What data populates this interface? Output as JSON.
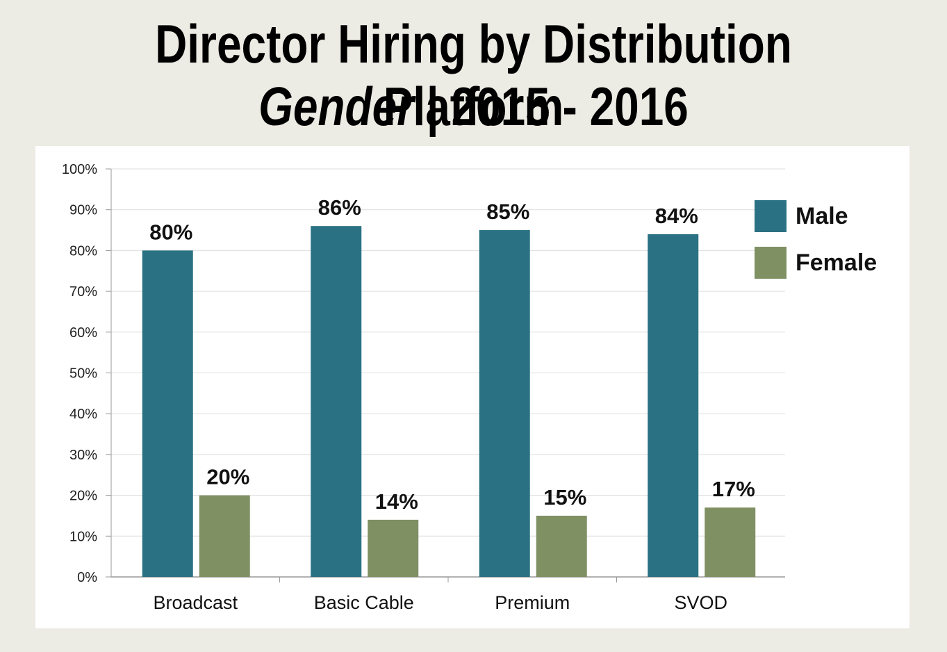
{
  "title": {
    "line1": "Director Hiring by Distribution Platform",
    "line2_emphasis": "Gender",
    "line2_separator": " | ",
    "line2_rest": "2015 - 2016"
  },
  "chart_data": {
    "type": "bar",
    "title": "Director Hiring by Distribution Platform Gender | 2015 - 2016",
    "xlabel": "",
    "ylabel": "",
    "ylim": [
      0,
      100
    ],
    "yticks": [
      "0%",
      "10%",
      "20%",
      "30%",
      "40%",
      "50%",
      "60%",
      "70%",
      "80%",
      "90%",
      "100%"
    ],
    "categories": [
      "Broadcast",
      "Basic Cable",
      "Premium",
      "SVOD"
    ],
    "series": [
      {
        "name": "Male",
        "color": "#2a7184",
        "values": [
          80,
          86,
          85,
          84
        ],
        "labels": [
          "80%",
          "86%",
          "85%",
          "84%"
        ]
      },
      {
        "name": "Female",
        "color": "#7f9063",
        "values": [
          20,
          14,
          15,
          17
        ],
        "labels": [
          "20%",
          "14%",
          "15%",
          "17%"
        ]
      }
    ],
    "grid": true,
    "legend": "right"
  }
}
